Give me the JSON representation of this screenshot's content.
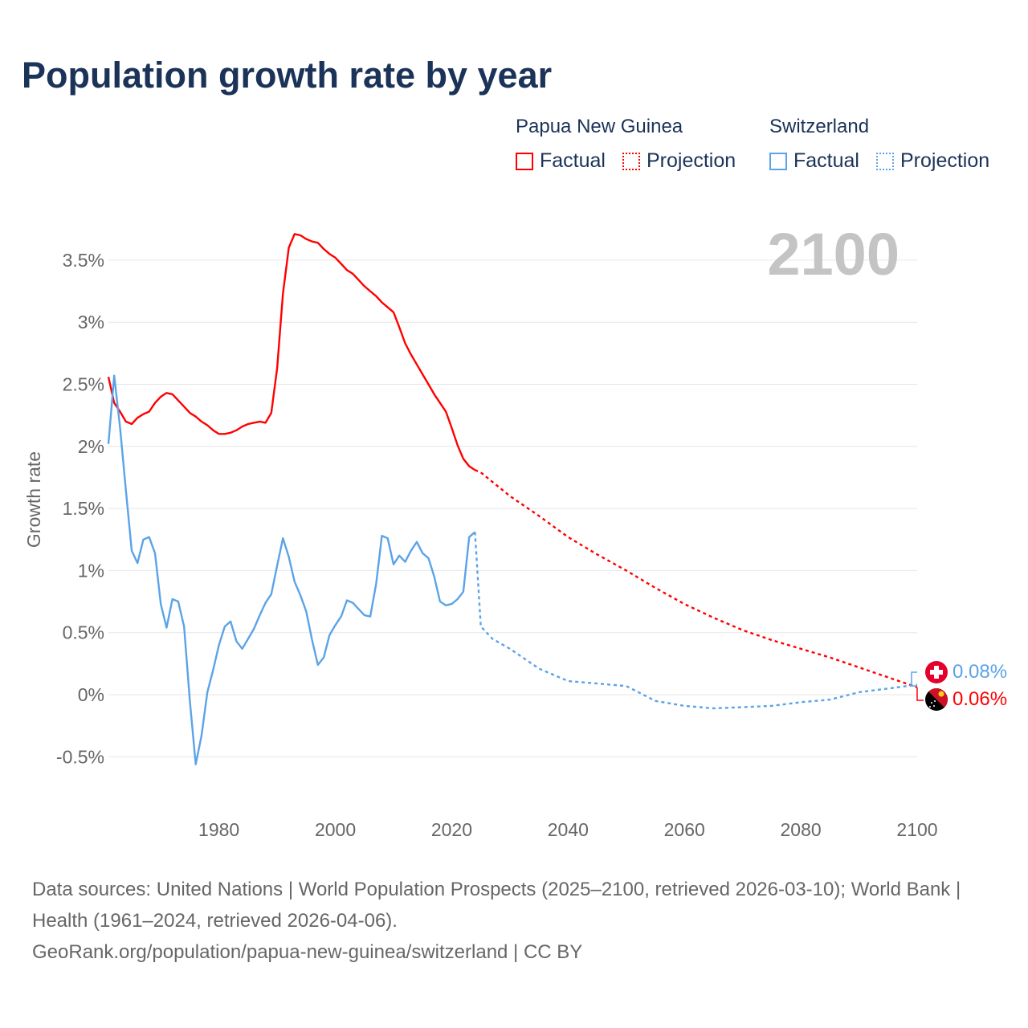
{
  "title": "Population growth rate by year",
  "legend": {
    "groups": [
      {
        "name": "Papua New Guinea",
        "factual": "Factual",
        "projection": "Projection",
        "color": "#ff0000"
      },
      {
        "name": "Switzerland",
        "factual": "Factual",
        "projection": "Projection",
        "color": "#5ba3e8"
      }
    ]
  },
  "year_display": "2100",
  "end_labels": {
    "switzerland": "0.08%",
    "png": "0.06%"
  },
  "footer": {
    "sources": "Data sources: United Nations | World Population Prospects (2025–2100, retrieved 2026-03-10); World Bank | Health (1961–2024, retrieved 2026-04-06).",
    "link": "GeoRank.org/population/papua-new-guinea/switzerland | CC BY"
  },
  "chart_data": {
    "type": "line",
    "title": "Population growth rate by year",
    "xlabel": "",
    "ylabel": "Growth rate",
    "xlim": [
      1961,
      2100
    ],
    "ylim": [
      -0.75,
      3.9
    ],
    "xticks": [
      1980,
      2000,
      2020,
      2040,
      2060,
      2080,
      2100
    ],
    "xtick_labels": [
      "1980",
      "2000",
      "2020",
      "2040",
      "2060",
      "2080",
      "2100"
    ],
    "yticks": [
      -0.5,
      0,
      0.5,
      1,
      1.5,
      2,
      2.5,
      3,
      3.5
    ],
    "ytick_labels": [
      "-0.5%",
      "0%",
      "0.5%",
      "1%",
      "1.5%",
      "2%",
      "2.5%",
      "3%",
      "3.5%"
    ],
    "grid": true,
    "legend_position": "top-right",
    "series": [
      {
        "name": "Papua New Guinea Factual",
        "color": "#ff0000",
        "style": "solid",
        "x": [
          1961,
          1962,
          1963,
          1964,
          1965,
          1966,
          1967,
          1968,
          1969,
          1970,
          1971,
          1972,
          1973,
          1974,
          1975,
          1976,
          1977,
          1978,
          1979,
          1980,
          1981,
          1982,
          1983,
          1984,
          1985,
          1986,
          1987,
          1988,
          1989,
          1990,
          1991,
          1992,
          1993,
          1994,
          1995,
          1996,
          1997,
          1998,
          1999,
          2000,
          2001,
          2002,
          2003,
          2004,
          2005,
          2006,
          2007,
          2008,
          2009,
          2010,
          2011,
          2012,
          2013,
          2014,
          2015,
          2016,
          2017,
          2018,
          2019,
          2020,
          2021,
          2022,
          2023,
          2024
        ],
        "y": [
          2.56,
          2.35,
          2.28,
          2.2,
          2.18,
          2.23,
          2.26,
          2.28,
          2.35,
          2.4,
          2.43,
          2.42,
          2.37,
          2.32,
          2.27,
          2.24,
          2.2,
          2.17,
          2.13,
          2.1,
          2.1,
          2.11,
          2.13,
          2.16,
          2.18,
          2.19,
          2.2,
          2.19,
          2.27,
          2.63,
          3.23,
          3.6,
          3.71,
          3.7,
          3.67,
          3.65,
          3.64,
          3.59,
          3.55,
          3.52,
          3.47,
          3.42,
          3.39,
          3.34,
          3.29,
          3.25,
          3.21,
          3.16,
          3.12,
          3.08,
          2.96,
          2.83,
          2.74,
          2.66,
          2.58,
          2.5,
          2.42,
          2.35,
          2.28,
          2.15,
          2.01,
          1.9,
          1.84,
          1.81
        ]
      },
      {
        "name": "Papua New Guinea Projection",
        "color": "#ff0000",
        "style": "dotted",
        "x": [
          2024,
          2025,
          2030,
          2035,
          2040,
          2045,
          2050,
          2055,
          2060,
          2065,
          2070,
          2075,
          2080,
          2085,
          2090,
          2095,
          2100
        ],
        "y": [
          1.81,
          1.79,
          1.6,
          1.44,
          1.27,
          1.13,
          1.0,
          0.86,
          0.73,
          0.62,
          0.52,
          0.44,
          0.37,
          0.3,
          0.22,
          0.14,
          0.06
        ]
      },
      {
        "name": "Switzerland Factual",
        "color": "#5ba3e8",
        "style": "solid",
        "x": [
          1961,
          1962,
          1963,
          1964,
          1965,
          1966,
          1967,
          1968,
          1969,
          1970,
          1971,
          1972,
          1973,
          1974,
          1975,
          1976,
          1977,
          1978,
          1979,
          1980,
          1981,
          1982,
          1983,
          1984,
          1985,
          1986,
          1987,
          1988,
          1989,
          1990,
          1991,
          1992,
          1993,
          1994,
          1995,
          1996,
          1997,
          1998,
          1999,
          2000,
          2001,
          2002,
          2003,
          2004,
          2005,
          2006,
          2007,
          2008,
          2009,
          2010,
          2011,
          2012,
          2013,
          2014,
          2015,
          2016,
          2017,
          2018,
          2019,
          2020,
          2021,
          2022,
          2023,
          2024
        ],
        "y": [
          2.02,
          2.57,
          2.15,
          1.65,
          1.16,
          1.06,
          1.25,
          1.27,
          1.14,
          0.73,
          0.54,
          0.77,
          0.75,
          0.55,
          -0.05,
          -0.56,
          -0.33,
          0.02,
          0.2,
          0.4,
          0.55,
          0.59,
          0.43,
          0.37,
          0.45,
          0.53,
          0.64,
          0.74,
          0.81,
          1.04,
          1.26,
          1.11,
          0.91,
          0.8,
          0.67,
          0.44,
          0.24,
          0.3,
          0.48,
          0.56,
          0.63,
          0.76,
          0.74,
          0.69,
          0.64,
          0.63,
          0.89,
          1.28,
          1.26,
          1.05,
          1.12,
          1.07,
          1.16,
          1.23,
          1.14,
          1.1,
          0.95,
          0.75,
          0.72,
          0.73,
          0.77,
          0.83,
          1.27,
          1.31
        ]
      },
      {
        "name": "Switzerland Projection",
        "color": "#5ba3e8",
        "style": "dotted",
        "x": [
          2024,
          2025,
          2027,
          2030,
          2035,
          2040,
          2045,
          2050,
          2055,
          2060,
          2065,
          2070,
          2075,
          2080,
          2085,
          2090,
          2095,
          2100
        ],
        "y": [
          1.31,
          0.55,
          0.45,
          0.37,
          0.21,
          0.11,
          0.09,
          0.07,
          -0.05,
          -0.09,
          -0.11,
          -0.1,
          -0.09,
          -0.06,
          -0.04,
          0.02,
          0.05,
          0.08
        ]
      }
    ]
  }
}
